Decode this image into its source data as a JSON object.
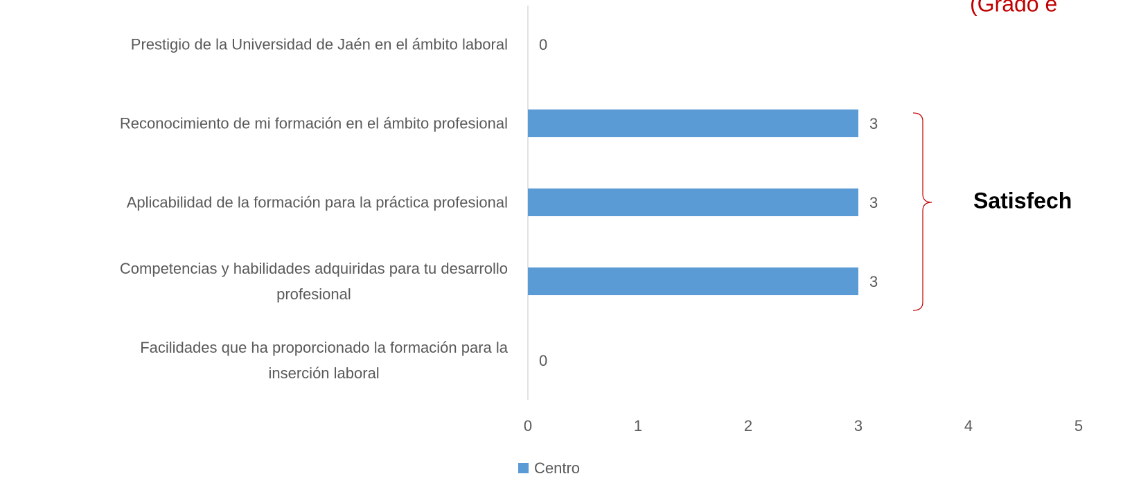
{
  "chart_data": {
    "type": "bar",
    "orientation": "horizontal",
    "categories": [
      "Prestigio de la Universidad de Jaén en el ámbito laboral",
      "Reconocimiento de mi formación en el ámbito profesional",
      "Aplicabilidad de la formación para la práctica profesional",
      "Competencias y habilidades adquiridas para tu desarrollo\nprofesional",
      "Facilidades que ha proporcionado la formación para la\ninserción laboral"
    ],
    "series": [
      {
        "name": "Centro",
        "color": "#5b9bd5",
        "values": [
          0,
          3,
          3,
          3,
          0
        ]
      }
    ],
    "xlim": [
      0,
      5
    ],
    "xticks": [
      0,
      1,
      2,
      3,
      4,
      5
    ],
    "annotations": [
      "(Grado e",
      "Satisfech"
    ]
  }
}
